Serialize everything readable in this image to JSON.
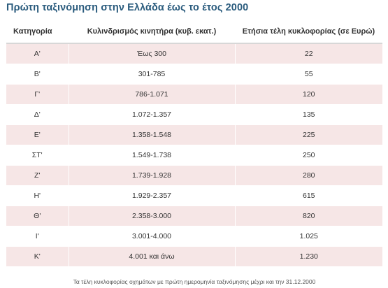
{
  "title": "Πρώτη ταξινόμηση στην Ελλάδα έως το έτος 2000",
  "table": {
    "headers": [
      "Κατηγορία",
      "Κυλινδρισμός κινητήρα (κυβ. εκατ.)",
      "Ετήσια τέλη κυκλοφορίας (σε Ευρώ)"
    ],
    "rows": [
      [
        "Α'",
        "Έως 300",
        "22"
      ],
      [
        "Β'",
        "301-785",
        "55"
      ],
      [
        "Γ'",
        "786-1.071",
        "120"
      ],
      [
        "Δ'",
        "1.072-1.357",
        "135"
      ],
      [
        "Ε'",
        "1.358-1.548",
        "225"
      ],
      [
        "ΣΤ'",
        "1.549-1.738",
        "250"
      ],
      [
        "Ζ'",
        "1.739-1.928",
        "280"
      ],
      [
        "Η'",
        "1.929-2.357",
        "615"
      ],
      [
        "Θ'",
        "2.358-3.000",
        "820"
      ],
      [
        "Ι'",
        "3.001-4.000",
        "1.025"
      ],
      [
        "Κ'",
        "4.001 και άνω",
        "1.230"
      ]
    ]
  },
  "footnote": "Τα τέλη κυκλοφορίας οχημάτων με πρώτη ημερομηνία ταξινόμησης μέχρι και την 31.12.2000",
  "colors": {
    "title": "#2a5b7d",
    "row_stripe": "#f6e6e6",
    "header_rule": "#d7d7d7"
  }
}
